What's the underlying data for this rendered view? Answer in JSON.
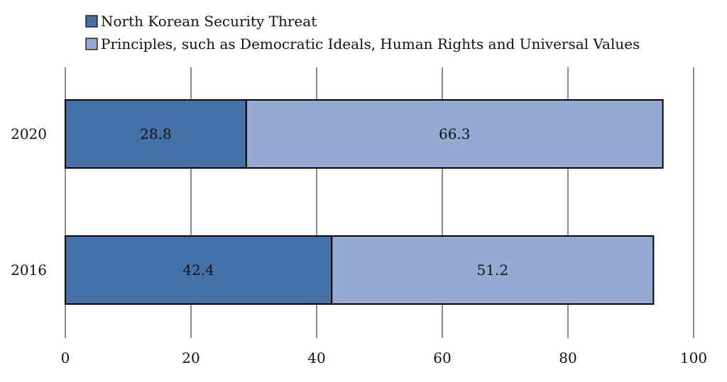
{
  "chart_data": {
    "type": "bar",
    "orientation": "horizontal",
    "stacked": true,
    "categories": [
      "2020",
      "2016"
    ],
    "series": [
      {
        "name": "North Korean Security Threat",
        "values": [
          28.8,
          42.4
        ],
        "color": "#4472a8"
      },
      {
        "name": "Principles, such as Democratic Ideals, Human Rights and Universal Values",
        "values": [
          66.3,
          51.2
        ],
        "color": "#95aad3"
      }
    ],
    "xlim": [
      0,
      100
    ],
    "xticks": [
      0,
      20,
      40,
      60,
      80,
      100
    ],
    "grid": "vertical",
    "legend_position": "top",
    "title": "",
    "xlabel": "",
    "ylabel": ""
  }
}
